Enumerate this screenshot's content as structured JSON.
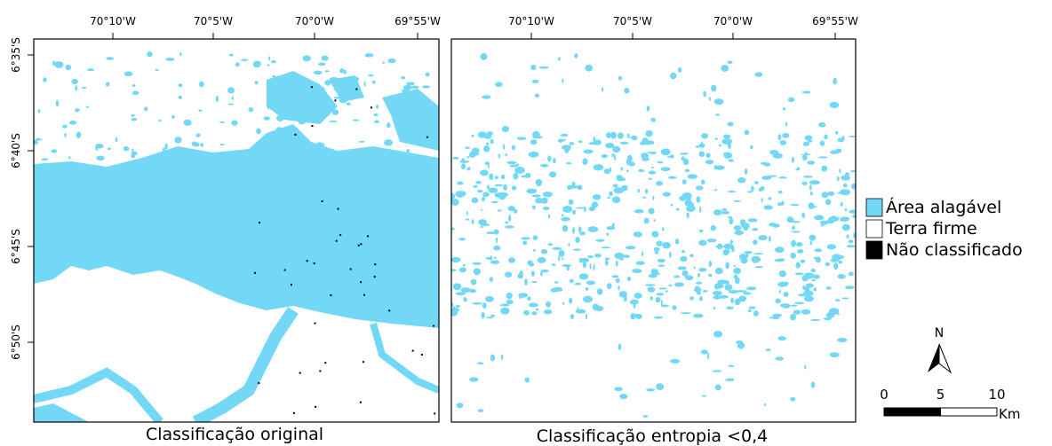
{
  "maps": [
    {
      "caption": "Classificação original",
      "x_ticks": [
        "70°10'W",
        "70°5'W",
        "70°0'W",
        "69°55'W"
      ],
      "y_ticks": [
        "6°35'S",
        "6°40'S",
        "6°45'S",
        "6°50'S"
      ]
    },
    {
      "caption": "Classificação entropia <0,4",
      "x_ticks": [
        "70°10'W",
        "70°5'W",
        "70°0'W",
        "69°55'W"
      ]
    }
  ],
  "legend": [
    {
      "label": "Área alagável",
      "color": "#73d8f5"
    },
    {
      "label": "Terra firme",
      "color": "#ffffff"
    },
    {
      "label": "Não classificado",
      "color": "#000000"
    }
  ],
  "north_arrow": "N",
  "scale_bar": {
    "ticks": [
      0,
      5,
      10
    ],
    "unit": "Km"
  }
}
